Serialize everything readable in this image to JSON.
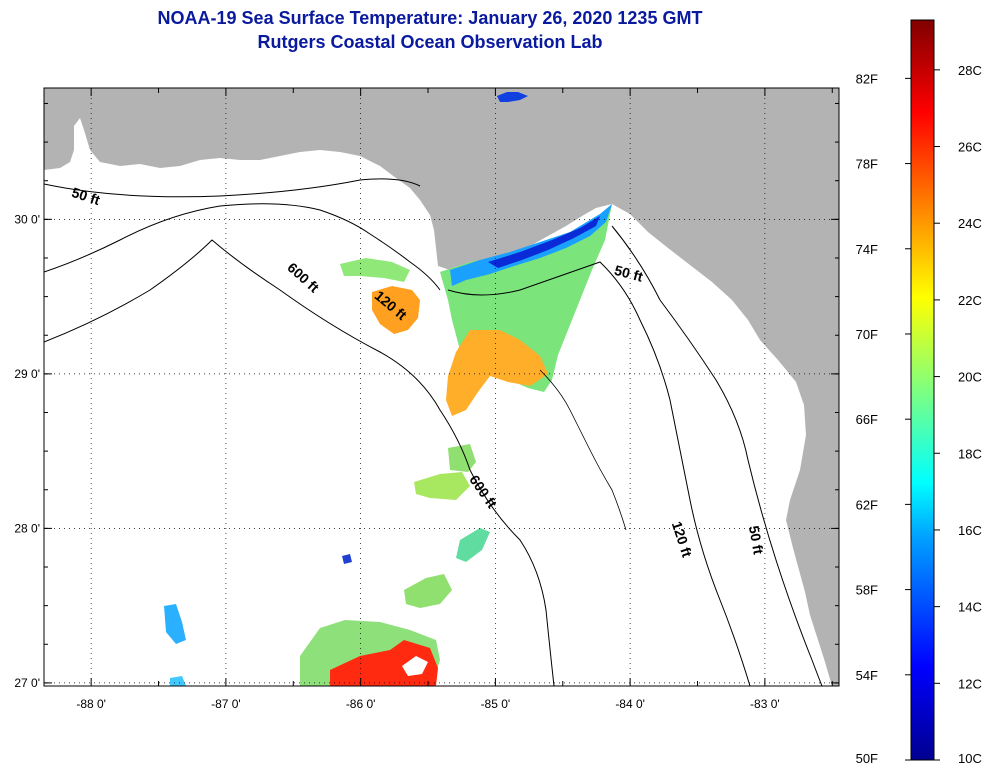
{
  "header": {
    "title": "NOAA-19 Sea Surface Temperature:  January 26, 2020 1235 GMT",
    "subtitle": "Rutgers Coastal Ocean Observation Lab"
  },
  "map": {
    "lon_range": [
      -88.35,
      -82.45
    ],
    "lat_range": [
      26.98,
      30.85
    ],
    "lon_ticks": [
      {
        "value": -88,
        "label": "-88 0'"
      },
      {
        "value": -87,
        "label": "-87 0'"
      },
      {
        "value": -86,
        "label": "-86 0'"
      },
      {
        "value": -85,
        "label": "-85 0'"
      },
      {
        "value": -84,
        "label": "-84 0'"
      },
      {
        "value": -83,
        "label": "-83 0'"
      }
    ],
    "lat_ticks": [
      {
        "value": 30,
        "label": "30 0'"
      },
      {
        "value": 29,
        "label": "29 0'"
      },
      {
        "value": 28,
        "label": "28 0'"
      },
      {
        "value": 27,
        "label": "27 0'"
      }
    ],
    "grid": "dotted",
    "land_color": "#b3b3b3",
    "contour_labels": [
      {
        "text": "50 ft",
        "lon": -88.05,
        "lat": 30.12,
        "rot": 18
      },
      {
        "text": "600 ft",
        "lon": -86.45,
        "lat": 29.6,
        "rot": 42
      },
      {
        "text": "120 ft",
        "lon": -85.8,
        "lat": 29.42,
        "rot": 40
      },
      {
        "text": "50 ft",
        "lon": -84.02,
        "lat": 29.62,
        "rot": 15
      },
      {
        "text": "600 ft",
        "lon": -85.12,
        "lat": 28.22,
        "rot": 55
      },
      {
        "text": "120 ft",
        "lon": -83.65,
        "lat": 27.92,
        "rot": 72
      },
      {
        "text": "50 ft",
        "lon": -83.1,
        "lat": 27.92,
        "rot": 80
      }
    ]
  },
  "colorbar": {
    "f_labels": [
      "82F",
      "78F",
      "74F",
      "70F",
      "66F",
      "62F",
      "58F",
      "54F",
      "50F"
    ],
    "c_labels": [
      "28C",
      "26C",
      "24C",
      "22C",
      "20C",
      "18C",
      "16C",
      "14C",
      "12C",
      "10C"
    ],
    "range_c": [
      10,
      29.3
    ],
    "colors": [
      "#00008f",
      "#0000ff",
      "#00a0ff",
      "#00ffff",
      "#7fff7f",
      "#ffff00",
      "#ff8000",
      "#ff0000",
      "#800000"
    ]
  }
}
